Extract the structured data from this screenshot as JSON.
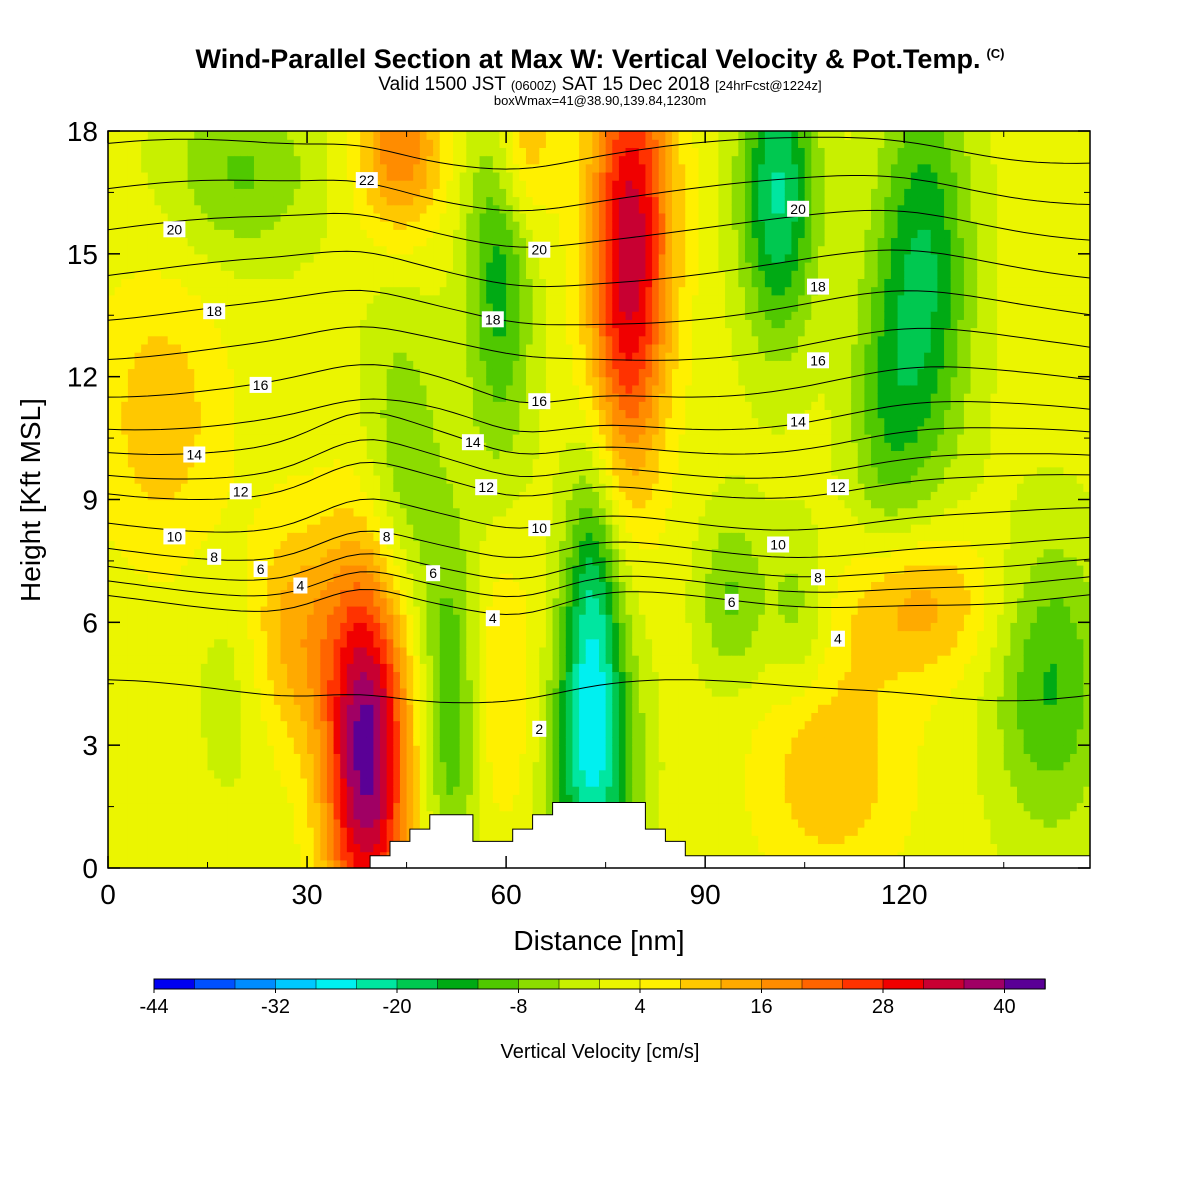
{
  "header": {
    "title": "Wind-Parallel Section at Max W: Vertical Velocity & Pot.Temp.",
    "copyright": "(C)",
    "valid_prefix": "Valid 1500 JST",
    "valid_utc": "(0600Z)",
    "valid_date": "SAT 15 Dec 2018",
    "forecast": "[24hrFcst@1224z]",
    "box_w_max": "boxWmax=41@38.90,139.84,1230m"
  },
  "colors": {
    "velocity_palette": [
      "#0000f0",
      "#0050ff",
      "#008cff",
      "#00c8ff",
      "#00f0f0",
      "#00e6a0",
      "#00c850",
      "#00aa14",
      "#50c800",
      "#8cdc00",
      "#c8f000",
      "#ebf500",
      "#fff000",
      "#ffc800",
      "#ffaa00",
      "#ff8c00",
      "#ff6400",
      "#ff3200",
      "#f00000",
      "#c80032",
      "#a00064",
      "#5a0096"
    ]
  },
  "chart_data": {
    "type": "heatmap",
    "xlabel": "Distance [nm]",
    "ylabel": "Height [Kft MSL]",
    "xlim": [
      0,
      148
    ],
    "ylim": [
      0,
      18
    ],
    "x_ticks": [
      0,
      30,
      60,
      90,
      120
    ],
    "y_ticks": [
      0,
      3,
      6,
      9,
      12,
      15,
      18
    ],
    "colorbar": {
      "label": "Vertical Velocity [cm/s]",
      "tick_labels": [
        "-44",
        "-32",
        "-20",
        "-8",
        "4",
        "16",
        "28",
        "40"
      ],
      "bins": 22,
      "range": [
        -44,
        44
      ]
    },
    "velocity_features": [
      {
        "x": 39,
        "y": 2.9,
        "w": 41,
        "sx": 4.5,
        "sy": 3.4
      },
      {
        "x": 79,
        "y": 16.2,
        "w": 26,
        "sx": 4.5,
        "sy": 3.2
      },
      {
        "x": 78,
        "y": 12.5,
        "w": 14,
        "sx": 4.0,
        "sy": 3.0
      },
      {
        "x": 44,
        "y": 17.6,
        "w": 18,
        "sx": 4.5,
        "sy": 1.5
      },
      {
        "x": 62,
        "y": 17.8,
        "w": 14,
        "sx": 3.5,
        "sy": 1.6
      },
      {
        "x": 122,
        "y": 6.5,
        "w": 13,
        "sx": 8.0,
        "sy": 1.3
      },
      {
        "x": 109,
        "y": 2.5,
        "w": 10,
        "sx": 8.0,
        "sy": 2.0
      },
      {
        "x": 58,
        "y": 4.5,
        "w": 8,
        "sx": 5.0,
        "sy": 2.5
      },
      {
        "x": 8,
        "y": 11.0,
        "w": 9,
        "sx": 7.0,
        "sy": 2.5
      },
      {
        "x": 28,
        "y": 5.8,
        "w": 12,
        "sx": 5.0,
        "sy": 2.0
      },
      {
        "x": 73,
        "y": 2.6,
        "w": -24,
        "sx": 4.5,
        "sy": 2.6
      },
      {
        "x": 73,
        "y": 6.8,
        "w": -16,
        "sx": 3.0,
        "sy": 2.5
      },
      {
        "x": 52,
        "y": 4.0,
        "w": -16,
        "sx": 3.2,
        "sy": 3.0
      },
      {
        "x": 44,
        "y": 9.5,
        "w": -10,
        "sx": 4.5,
        "sy": 3.0
      },
      {
        "x": 59,
        "y": 15.0,
        "w": -16,
        "sx": 3.5,
        "sy": 3.5
      },
      {
        "x": 101,
        "y": 16.5,
        "w": -22,
        "sx": 4.0,
        "sy": 2.5
      },
      {
        "x": 123,
        "y": 14.5,
        "w": -18,
        "sx": 5.0,
        "sy": 3.5
      },
      {
        "x": 117,
        "y": 11.0,
        "w": -9,
        "sx": 4.0,
        "sy": 2.5
      },
      {
        "x": 142,
        "y": 4.5,
        "w": -14,
        "sx": 6.0,
        "sy": 2.5
      },
      {
        "x": 94,
        "y": 6.6,
        "w": -10,
        "sx": 3.5,
        "sy": 1.5
      },
      {
        "x": 104,
        "y": 6.2,
        "w": -8,
        "sx": 3.5,
        "sy": 1.5
      },
      {
        "x": 20,
        "y": 17.0,
        "w": -10,
        "sx": 8.0,
        "sy": 1.5
      },
      {
        "x": 19,
        "y": 4.5,
        "w": -4,
        "sx": 4.0,
        "sy": 2.0
      }
    ],
    "theta_contours": [
      {
        "base": 4.3,
        "label": "2",
        "lx": 65,
        "ly": 3.4
      },
      {
        "base": 6.5,
        "label": "4",
        "lx": 29,
        "ly": 6.9
      },
      {
        "base": 6.9,
        "label": "6",
        "lx": 23,
        "ly": 7.3
      },
      {
        "base": 7.3,
        "label": "8",
        "lx": 16,
        "ly": 7.6
      },
      {
        "base": 7.8,
        "label": "10",
        "lx": 10,
        "ly": 8.1
      },
      {
        "base": 8.5,
        "label": "",
        "lx": 0,
        "ly": 0
      },
      {
        "base": 9.3,
        "label": "12",
        "lx": 20,
        "ly": 9.2
      },
      {
        "base": 9.8,
        "label": "",
        "lx": 0,
        "ly": 0
      },
      {
        "base": 10.4,
        "label": "14",
        "lx": 13,
        "ly": 10.1
      },
      {
        "base": 11.0,
        "label": "",
        "lx": 0,
        "ly": 0
      },
      {
        "base": 11.8,
        "label": "16",
        "lx": 23,
        "ly": 11.8
      },
      {
        "base": 12.7,
        "label": "",
        "lx": 0,
        "ly": 0
      },
      {
        "base": 13.6,
        "label": "18",
        "lx": 16,
        "ly": 13.6
      },
      {
        "base": 14.6,
        "label": "",
        "lx": 0,
        "ly": 0
      },
      {
        "base": 15.6,
        "label": "20",
        "lx": 10,
        "ly": 15.6
      },
      {
        "base": 16.5,
        "label": "",
        "lx": 0,
        "ly": 0
      },
      {
        "base": 17.5,
        "label": "22",
        "lx": 39,
        "ly": 16.8
      }
    ],
    "contour_labels": [
      {
        "text": "2",
        "x": 65,
        "y": 3.4
      },
      {
        "text": "4",
        "x": 29,
        "y": 6.9
      },
      {
        "text": "4",
        "x": 58,
        "y": 6.1
      },
      {
        "text": "4",
        "x": 110,
        "y": 5.6
      },
      {
        "text": "6",
        "x": 23,
        "y": 7.3
      },
      {
        "text": "6",
        "x": 49,
        "y": 7.2
      },
      {
        "text": "6",
        "x": 94,
        "y": 6.5
      },
      {
        "text": "8",
        "x": 16,
        "y": 7.6
      },
      {
        "text": "8",
        "x": 42,
        "y": 8.1
      },
      {
        "text": "8",
        "x": 107,
        "y": 7.1
      },
      {
        "text": "10",
        "x": 10,
        "y": 8.1
      },
      {
        "text": "10",
        "x": 65,
        "y": 8.3
      },
      {
        "text": "10",
        "x": 101,
        "y": 7.9
      },
      {
        "text": "12",
        "x": 20,
        "y": 9.2
      },
      {
        "text": "12",
        "x": 57,
        "y": 9.3
      },
      {
        "text": "12",
        "x": 110,
        "y": 9.3
      },
      {
        "text": "14",
        "x": 13,
        "y": 10.1
      },
      {
        "text": "14",
        "x": 55,
        "y": 10.4
      },
      {
        "text": "14",
        "x": 104,
        "y": 10.9
      },
      {
        "text": "16",
        "x": 23,
        "y": 11.8
      },
      {
        "text": "16",
        "x": 65,
        "y": 11.4
      },
      {
        "text": "16",
        "x": 107,
        "y": 12.4
      },
      {
        "text": "18",
        "x": 16,
        "y": 13.6
      },
      {
        "text": "18",
        "x": 58,
        "y": 13.4
      },
      {
        "text": "18",
        "x": 107,
        "y": 14.2
      },
      {
        "text": "20",
        "x": 10,
        "y": 15.6
      },
      {
        "text": "20",
        "x": 65,
        "y": 15.1
      },
      {
        "text": "20",
        "x": 104,
        "y": 16.1
      },
      {
        "text": "22",
        "x": 39,
        "y": 16.8
      }
    ],
    "terrain": [
      [
        0,
        0
      ],
      [
        39.5,
        0
      ],
      [
        39.5,
        0.3
      ],
      [
        42.5,
        0.3
      ],
      [
        42.5,
        0.65
      ],
      [
        45.5,
        0.65
      ],
      [
        45.5,
        0.95
      ],
      [
        48.5,
        0.95
      ],
      [
        48.5,
        1.3
      ],
      [
        55,
        1.3
      ],
      [
        55,
        0.65
      ],
      [
        61,
        0.65
      ],
      [
        61,
        0.95
      ],
      [
        64,
        0.95
      ],
      [
        64,
        1.3
      ],
      [
        67,
        1.3
      ],
      [
        67,
        1.6
      ],
      [
        81,
        1.6
      ],
      [
        81,
        0.95
      ],
      [
        84,
        0.95
      ],
      [
        84,
        0.65
      ],
      [
        87,
        0.65
      ],
      [
        87,
        0.3
      ],
      [
        148,
        0.3
      ],
      [
        148,
        0
      ]
    ]
  }
}
